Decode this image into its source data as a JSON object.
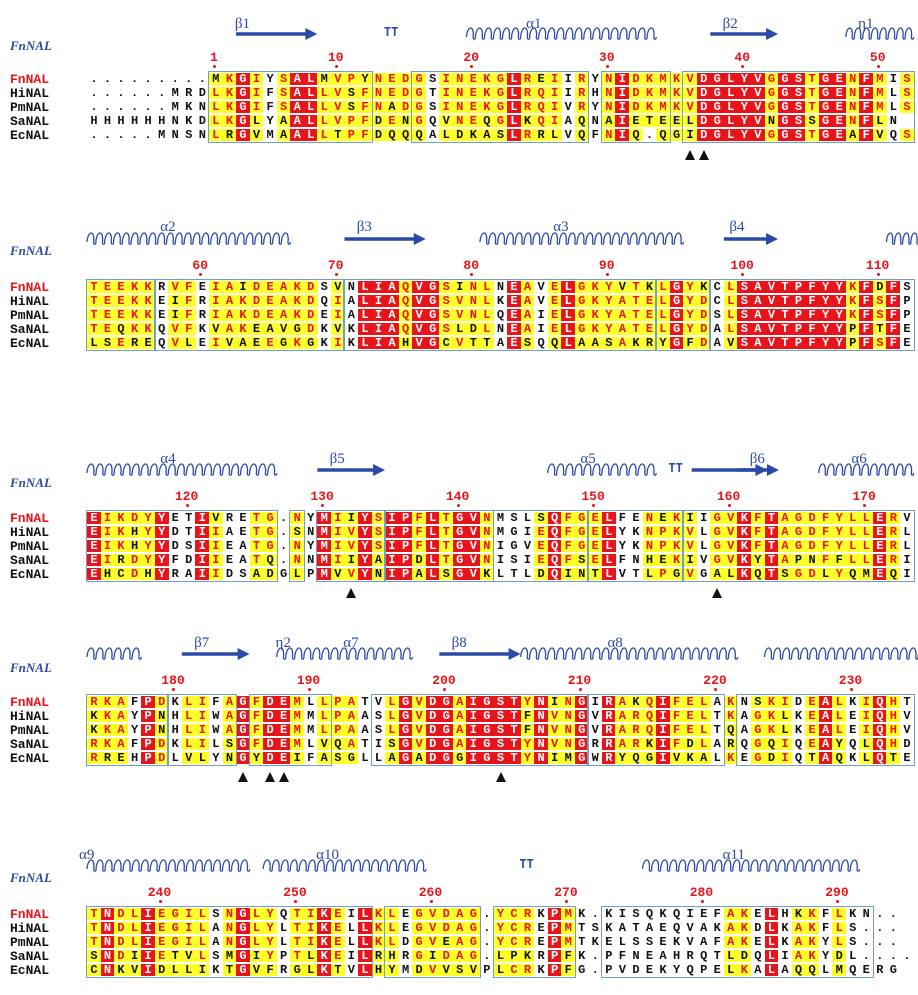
{
  "colors": {
    "identical_bg": "#e8141b",
    "similar_bg": "#ffff2a",
    "similar_text": "#e8141b",
    "structure": "#2b4aa8",
    "box": "#6fa0c6"
  },
  "structure_label": "FnNAL",
  "blocks": [
    {
      "start": 1,
      "sequences": [
        {
          "name": "FnNAL",
          "seq": ".........MKGIYSALMVPYNEDGSINEKGLREIIRYNIDKMKVDGLYVGGSTGENFMIS"
        },
        {
          "name": "HiNAL",
          "seq": "......MRDLKGIFSALLVSFNEDGTINEKGLRQIIRHNIDKMKVDGLYVGGSTGENFMLS"
        },
        {
          "name": "PmNAL",
          "seq": "......MKNLKGIFSALLVSFNADGSINEKGLRQIVRYNIDKMKVDGLYVGGSTGENFMLS"
        },
        {
          "name": "SaNAL",
          "seq": "HHHHHHNKDLKGLYAALLVPFDENGQVNEQGLKQIAQNAIETEELDGLYVNGSSGENFLN"
        },
        {
          "name": "EcNAL",
          "seq": ".....MNSNLRGVMAALLTPFDQQQALDKASLRRLVQFNIQ.QGIDGLYVGGSTGEAFVQS"
        }
      ],
      "numbers": [
        "1",
        "10",
        "20",
        "30",
        "40",
        "50"
      ],
      "ss_labels": [
        "β1",
        "TT",
        "α1",
        "β2",
        "η1"
      ],
      "markers": 2
    },
    {
      "start": 52,
      "sequences": [
        {
          "name": "FnNAL",
          "seq": "TEEKKRVFEIAIDEAKDSVNLIAQVGSINLNEAVELGKYVTKLGYKCLSAVTPFYYKFDFS"
        },
        {
          "name": "HiNAL",
          "seq": "TEEKKEIFRIAKDEAKDQIALIAQVGSVNLKEAVELGKYATELGYDCLSAVTPFYYKFSFP"
        },
        {
          "name": "PmNAL",
          "seq": "TEEKKEIFRIAKDEAKDEIALIAQVGSVNLQEAIELGKYATELGYDSLSAVTPFYYKFSFP"
        },
        {
          "name": "SaNAL",
          "seq": "TEQKKQVFKVAKEAVGDKVKLIAQVGSLDLNEAIELGKYATELGYDALSAVTPFYYPFTFE"
        },
        {
          "name": "EcNAL",
          "seq": "LSEREQVLEIVAEEGKGKIKLIAHVGCVTTAESQQLAASAKRYGFDAVSAVTPFYYPFSFE"
        }
      ],
      "numbers": [
        "60",
        "70",
        "80",
        "90",
        "100",
        "110"
      ],
      "ss_labels": [
        "α2",
        "β3",
        "α3",
        "β4"
      ],
      "markers": 0
    },
    {
      "start": 113,
      "sequences": [
        {
          "name": "FnNAL",
          "seq": "EIKDYYETIVRETG.NYMIIYSIPFLTGVNMSLSQFGELFENEKIIGVKFTAGDFYLLERV"
        },
        {
          "name": "HiNAL",
          "seq": "EIKHYYDTIIAETG.SNMIVYSIPFLTGVNMGIEQFGELYKNPKVLGVKFTAGDFYLLERL"
        },
        {
          "name": "PmNAL",
          "seq": "EIKHYYDSIIEATG.NYMIVYSIPFLTGVNIGVEQFGELYKNPKVLGVKFTAGDFYLLERL"
        },
        {
          "name": "SaNAL",
          "seq": "EIRDYYFDIIEATQ.NNMIIYAIPDLTGVNISIEQFSELFNHEKIVGVKYTAPNFFLLERI"
        },
        {
          "name": "EcNAL",
          "seq": "EHCDHYRAIIDSADGLPMVVYNIPALSGVKLTLDQINTLVTLPGVGALKQTSGDLYQMEQI"
        }
      ],
      "numbers": [
        "120",
        "130",
        "140",
        "150",
        "160",
        "170"
      ],
      "ss_labels": [
        "α4",
        "β5",
        "α5",
        "TT",
        "β6",
        "α6"
      ],
      "markers": 2
    },
    {
      "start": 174,
      "sequences": [
        {
          "name": "FnNAL",
          "seq": "RKAFPDKLIFAGFDEMLLPATVLGVDGAIGSTYNINGIRAKQIFELAKNSKIDEALKIQHT"
        },
        {
          "name": "HiNAL",
          "seq": "KKAYPNHLIWAGFDEMMLPAASLGVDGAIGSTFNVNGVRARQIFELTKAGKLKEALEIQHV"
        },
        {
          "name": "PmNAL",
          "seq": "KKAYPNHLIWAGFDEMMLPAASLGVDGAIGSTFNVNGVRARQIFELTQAGKLKEALEIQHV"
        },
        {
          "name": "SaNAL",
          "seq": "RKAFPDKLILSGFDEMLVQATISGVDGAIGSTYNVNGRRARKIFDLARQGQIQEAYQLQHD"
        },
        {
          "name": "EcNAL",
          "seq": "RREHPDLVLYNGYDEIFASGLLAGADGGIGSTYNIMGWRYQGIVKALKEGDIQTAQKLQTE"
        }
      ],
      "numbers": [
        "180",
        "190",
        "200",
        "210",
        "220",
        "230"
      ],
      "ss_labels": [
        "β7",
        "η2",
        "α7",
        "β8",
        "α8"
      ],
      "markers": 4
    },
    {
      "start": 235,
      "sequences": [
        {
          "name": "FnNAL",
          "seq": "TNDLIEGILSNGLYQTIKEILKLEGVDAG.YCRKPMK.KISQKQIEFAKELHKKFLKN.."
        },
        {
          "name": "HiNAL",
          "seq": "TNDLIEGILANGLYLTIKELLKLEGVDAG.YCREPMTSKATAEQVAKAKDLKAKFLS..."
        },
        {
          "name": "PmNAL",
          "seq": "TNDLIEGILANGLYLTIKELLKLDGVEAG.YCREPMTKELSSEKVAFAKELKAKYLS..."
        },
        {
          "name": "SaNAL",
          "seq": "SNDIIETVLSMGIYPTLKEILRHRGIDAG.LPKRPFK.PFNEAHRQTLDQLIAKYDL...."
        },
        {
          "name": "EcNAL",
          "seq": "CNKVIDLLIKTGVFRGLKTVLHYMDVVSVPLCRKPFG.PVDEKYQPELKALAQQLMQERG"
        }
      ],
      "numbers": [
        "240",
        "250",
        "260",
        "270",
        "280",
        "290"
      ],
      "ss_labels": [
        "α9",
        "α10",
        "TT",
        "α11"
      ],
      "markers": 0
    }
  ]
}
